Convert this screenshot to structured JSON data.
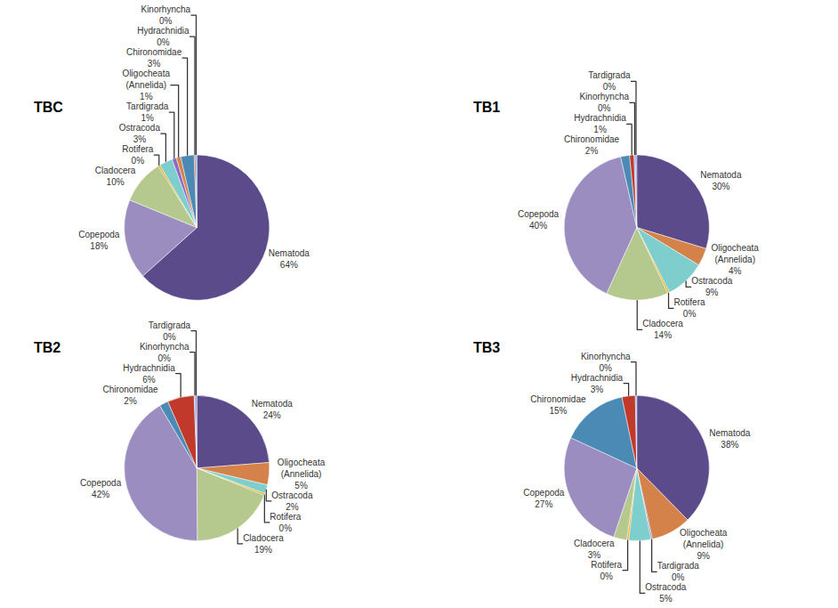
{
  "chart_data": [
    {
      "type": "pie",
      "title": "TBC",
      "categories": [
        "Nematoda",
        "Copepoda",
        "Cladocera",
        "Rotifera",
        "Ostracoda",
        "Tardigrada",
        "Oligocheata\n(Annelida)",
        "Chironomidae",
        "Hydrachnidia",
        "Kinorhyncha"
      ],
      "values": [
        64,
        18,
        10,
        0.4,
        3,
        1,
        1,
        3,
        0.3,
        0.3
      ],
      "value_labels": [
        "64%",
        "18%",
        "10%",
        "0%",
        "3%",
        "1%",
        "1%",
        "3%",
        "0%",
        "0%"
      ],
      "colors": [
        "#5c4b8a",
        "#9b8dc0",
        "#b5c98e",
        "#f0a500",
        "#7ecece",
        "#8e6bbf",
        "#d4824a",
        "#4a8ab5",
        "#c0392b",
        "#5dade2"
      ],
      "data_labels": true
    },
    {
      "type": "pie",
      "title": "TB1",
      "categories": [
        "Nematoda",
        "Oligocheata\n(Annelida)",
        "Ostracoda",
        "Rotifera",
        "Cladocera",
        "Copepoda",
        "Chironomidae",
        "Hydrachnidia",
        "Kinorhyncha",
        "Tardigrada"
      ],
      "values": [
        30,
        4,
        9,
        0.4,
        14,
        40,
        2,
        1,
        0.3,
        0.3
      ],
      "value_labels": [
        "30%",
        "4%",
        "9%",
        "0%",
        "14%",
        "40%",
        "2%",
        "1%",
        "0%",
        "0%"
      ],
      "colors": [
        "#5c4b8a",
        "#d4824a",
        "#7ecece",
        "#f0a500",
        "#b5c98e",
        "#9b8dc0",
        "#4a8ab5",
        "#c0392b",
        "#5dade2",
        "#8e6bbf"
      ],
      "data_labels": true
    },
    {
      "type": "pie",
      "title": "TB2",
      "categories": [
        "Nematoda",
        "Oligocheata\n(Annelida)",
        "Ostracoda",
        "Rotifera",
        "Cladocera",
        "Copepoda",
        "Chironomidae",
        "Hydrachnidia",
        "Kinorhyncha",
        "Tardigrada"
      ],
      "values": [
        24,
        5,
        2,
        0.4,
        19,
        42,
        2,
        6,
        0.3,
        0.3
      ],
      "value_labels": [
        "24%",
        "5%",
        "2%",
        "0%",
        "19%",
        "42%",
        "2%",
        "6%",
        "0%",
        "0%"
      ],
      "colors": [
        "#5c4b8a",
        "#d4824a",
        "#7ecece",
        "#f0a500",
        "#b5c98e",
        "#9b8dc0",
        "#4a8ab5",
        "#c0392b",
        "#5dade2",
        "#8e6bbf"
      ],
      "data_labels": true
    },
    {
      "type": "pie",
      "title": "TB3",
      "categories": [
        "Nematoda",
        "Oligocheata\n(Annelida)",
        "Tardigrada",
        "Ostracoda",
        "Rotifera",
        "Cladocera",
        "Copepoda",
        "Chironomidae",
        "Hydrachnidia",
        "Kinorhyncha"
      ],
      "values": [
        38,
        9,
        0.3,
        5,
        0.4,
        3,
        27,
        15,
        3,
        0.3
      ],
      "value_labels": [
        "38%",
        "9%",
        "0%",
        "5%",
        "0%",
        "3%",
        "27%",
        "15%",
        "3%",
        "0%"
      ],
      "colors": [
        "#5c4b8a",
        "#d4824a",
        "#8e6bbf",
        "#7ecece",
        "#f0a500",
        "#b5c98e",
        "#9b8dc0",
        "#4a8ab5",
        "#c0392b",
        "#5dade2"
      ],
      "data_labels": true
    }
  ]
}
